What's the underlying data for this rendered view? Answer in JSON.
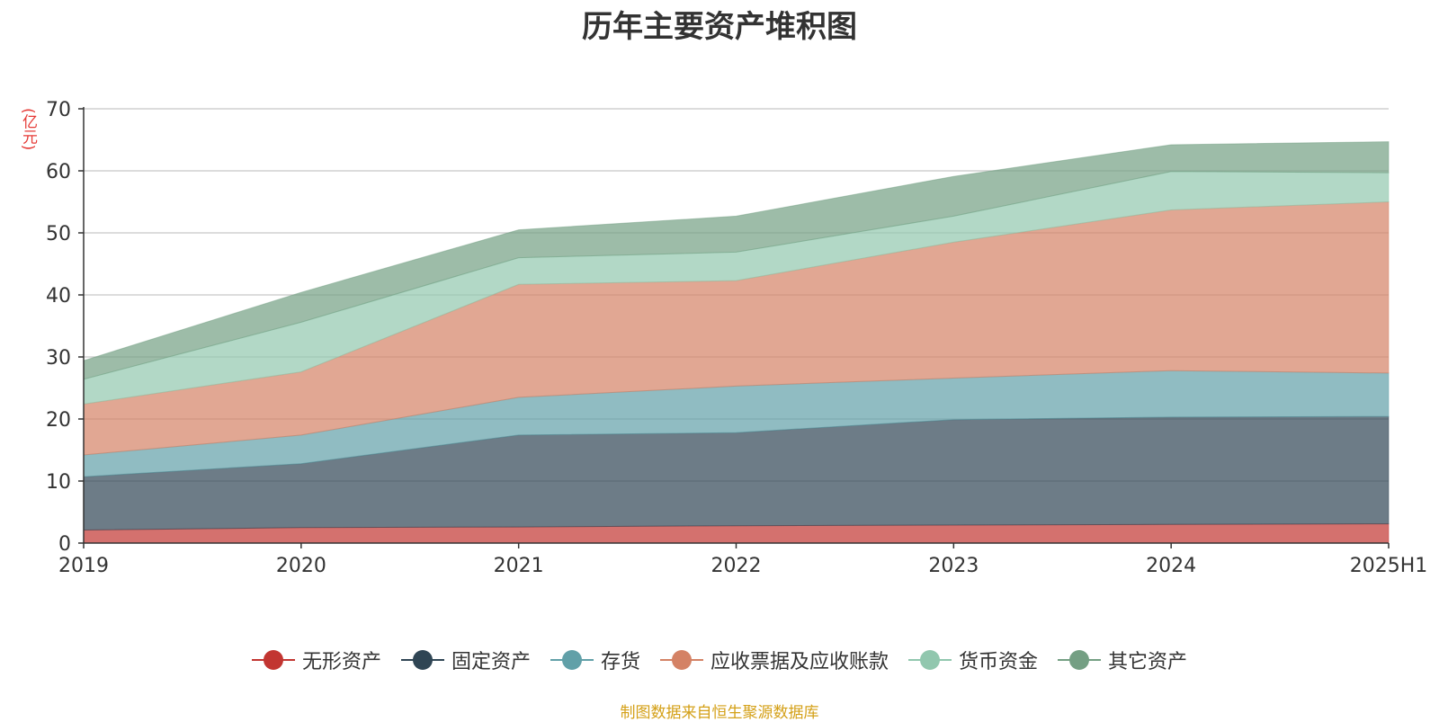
{
  "chart_data": {
    "type": "area",
    "stacked": true,
    "title": "历年主要资产堆积图",
    "y_unit": "(亿元)",
    "categories": [
      "2019",
      "2020",
      "2021",
      "2022",
      "2023",
      "2024",
      "2025H1"
    ],
    "ylim": [
      0,
      70
    ],
    "yticks": [
      0,
      10,
      20,
      30,
      40,
      50,
      60,
      70
    ],
    "grid": true,
    "legend_position": "bottom",
    "series": [
      {
        "name": "无形资产",
        "color": "#c23531",
        "values": [
          2.1,
          2.5,
          2.6,
          2.8,
          2.9,
          3.0,
          3.1
        ]
      },
      {
        "name": "固定资产",
        "color": "#2f4554",
        "values": [
          8.6,
          10.3,
          14.8,
          15.0,
          17.0,
          17.3,
          17.3
        ]
      },
      {
        "name": "存货",
        "color": "#61a0a8",
        "values": [
          3.5,
          4.6,
          6.1,
          7.5,
          6.7,
          7.5,
          7.0
        ]
      },
      {
        "name": "应收票据及应收账款",
        "color": "#d48265",
        "values": [
          8.2,
          10.2,
          18.2,
          17.0,
          21.9,
          25.9,
          27.6
        ]
      },
      {
        "name": "货币资金",
        "color": "#91c7ae",
        "values": [
          4.0,
          8.0,
          4.3,
          4.6,
          4.2,
          6.2,
          4.7
        ]
      },
      {
        "name": "其它资产",
        "color": "#749f83",
        "values": [
          3.0,
          4.8,
          4.5,
          5.8,
          6.4,
          4.3,
          5.0
        ]
      }
    ]
  },
  "footer": {
    "source_note": "制图数据来自恒生聚源数据库"
  }
}
